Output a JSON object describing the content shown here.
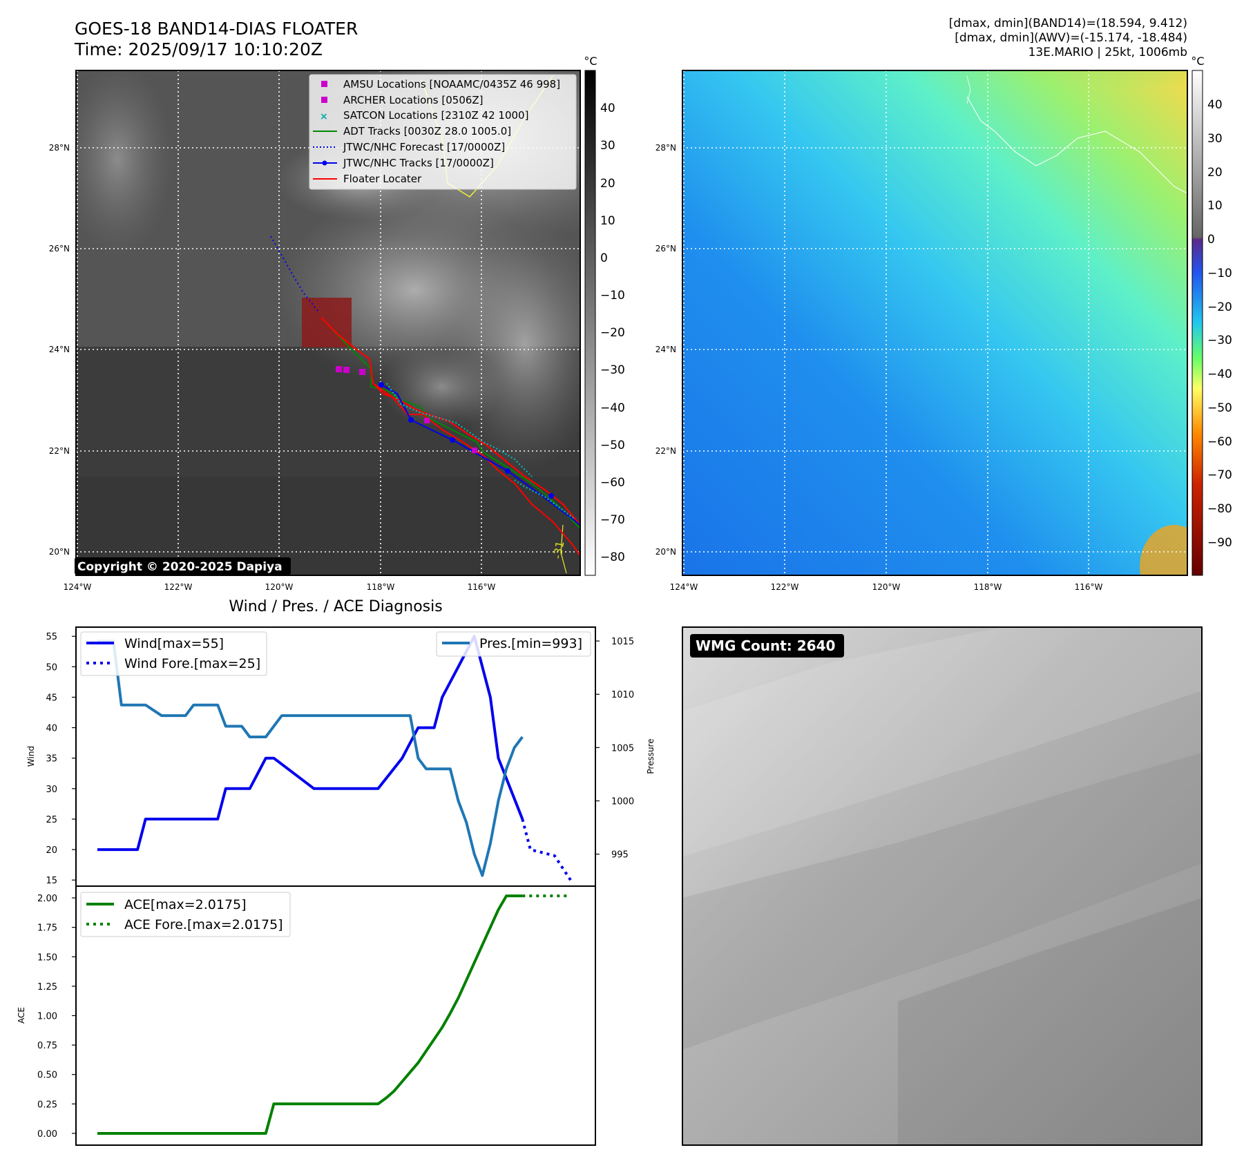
{
  "header": {
    "title_line1": "GOES-18 BAND14-DIAS FLOATER",
    "title_line2": "Time: 2025/09/17 10:10:20Z",
    "info_line1": "[dmax, dmin](BAND14)=(18.594, 9.412)",
    "info_line2": "[dmax, dmin](AWV)=(-15.174, -18.484)",
    "info_line3": "13E.MARIO | 25kt, 1006mb"
  },
  "maps": {
    "lon_ticks": [
      "124°W",
      "122°W",
      "120°W",
      "118°W",
      "116°W"
    ],
    "lat_ticks": [
      "28°N",
      "26°N",
      "24°N",
      "22°N",
      "20°N"
    ],
    "copyright": "Copyright © 2020-2025 Dapiya",
    "colorbar_unit": "°C",
    "ir_colorbar_ticks": [
      "40",
      "30",
      "20",
      "10",
      "0",
      "−10",
      "−20",
      "−30",
      "−40",
      "−50",
      "−60",
      "−70",
      "−80"
    ],
    "wv_colorbar_ticks": [
      "40",
      "30",
      "20",
      "10",
      "0",
      "−10",
      "−20",
      "−30",
      "−40",
      "−50",
      "−60",
      "−70",
      "−80",
      "−90"
    ],
    "contour_label": "-31"
  },
  "legend": {
    "amsu": "AMSU Locations [NOAAMC/0435Z 46 998]",
    "archer": "ARCHER Locations [0506Z]",
    "satcon": "SATCON Locations [2310Z 42 1000]",
    "adt": "ADT Tracks [0030Z 28.0 1005.0]",
    "jtwc_forecast": "JTWC/NHC Forecast [17/0000Z]",
    "jtwc_tracks": "JTWC/NHC Tracks [17/0000Z]",
    "floater": "Floater Locater"
  },
  "colors": {
    "wind": "#0000ee",
    "pressure": "#1f77b4",
    "ace": "#008000",
    "floater": "#ff0000",
    "amsu": "#cc00cc",
    "satcon": "#00bbbb"
  },
  "wmg_label": "WMG Count: 2640",
  "chart_data": [
    {
      "type": "line",
      "title": "Wind / Pres. / ACE Diagnosis",
      "ylabel": "Wind",
      "y2label": "Pressure",
      "ylim": [
        14,
        56.5
      ],
      "y2lim": [
        992.0,
        1016.3
      ],
      "yticks": [
        15,
        20,
        25,
        30,
        35,
        40,
        45,
        50,
        55
      ],
      "y2ticks": [
        995,
        1000,
        1005,
        1010,
        1015
      ],
      "legend": [
        "Wind[max=55]",
        "Wind Fore.[max=25]"
      ],
      "legend2": [
        "Pres.[min=993]"
      ],
      "series": [
        {
          "name": "Wind[max=55]",
          "axis": "left",
          "style": "solid",
          "x": [
            0,
            5,
            6,
            10,
            11,
            15,
            16,
            18,
            19,
            21,
            22,
            27,
            28,
            30,
            31,
            34,
            35,
            38,
            40,
            42,
            43,
            45,
            47,
            49,
            50,
            53
          ],
          "values": [
            20,
            20,
            25,
            25,
            25,
            25,
            30,
            30,
            30,
            35,
            35,
            30,
            30,
            30,
            30,
            30,
            30,
            35,
            40,
            40,
            45,
            50,
            55,
            45,
            35,
            25
          ]
        },
        {
          "name": "Wind Fore.[max=25]",
          "axis": "left",
          "style": "dotted",
          "x": [
            53,
            54,
            57,
            59
          ],
          "values": [
            25,
            20,
            19,
            15
          ]
        },
        {
          "name": "Pres.[min=993]",
          "axis": "right",
          "style": "solid",
          "x": [
            0,
            2,
            3,
            5,
            6,
            8,
            9,
            11,
            12,
            13,
            14,
            15,
            16,
            17,
            18,
            19,
            20,
            21,
            22,
            23,
            24,
            25,
            26,
            27,
            28,
            29,
            30,
            31,
            32,
            33,
            34,
            35,
            36,
            37,
            38,
            39,
            40,
            41,
            42,
            43,
            44,
            45,
            46,
            47,
            48,
            49,
            50,
            51,
            52,
            53
          ],
          "values": [
            1015,
            1015,
            1009,
            1009,
            1009,
            1008,
            1008,
            1008,
            1009,
            1009,
            1009,
            1009,
            1007,
            1007,
            1007,
            1006,
            1006,
            1006,
            1007,
            1008,
            1008,
            1008,
            1008,
            1008,
            1008,
            1008,
            1008,
            1008,
            1008,
            1008,
            1008,
            1008,
            1008,
            1008,
            1008,
            1008,
            1004,
            1003,
            1003,
            1003,
            1003,
            1000,
            998,
            995,
            993,
            996,
            1000,
            1003,
            1005,
            1006
          ]
        }
      ]
    },
    {
      "type": "line",
      "ylabel": "ACE",
      "ylim": [
        -0.1,
        2.1
      ],
      "yticks": [
        "0.00",
        "0.25",
        "0.50",
        "0.75",
        "1.00",
        "1.25",
        "1.50",
        "1.75",
        "2.00"
      ],
      "legend": [
        "ACE[max=2.0175]",
        "ACE Fore.[max=2.0175]"
      ],
      "series": [
        {
          "name": "ACE[max=2.0175]",
          "style": "solid",
          "x": [
            0,
            5,
            10,
            15,
            19,
            20,
            21,
            22,
            25,
            30,
            34,
            35,
            36,
            37,
            38,
            39,
            40,
            41,
            42,
            43,
            44,
            45,
            46,
            47,
            48,
            49,
            50,
            51,
            52,
            53
          ],
          "values": [
            0,
            0,
            0,
            0,
            0,
            0,
            0.0,
            0.25,
            0.25,
            0.25,
            0.25,
            0.25,
            0.3,
            0.36,
            0.44,
            0.52,
            0.6,
            0.7,
            0.8,
            0.9,
            1.02,
            1.15,
            1.3,
            1.45,
            1.6,
            1.75,
            1.9,
            2.0175,
            2.0175,
            2.0175
          ]
        },
        {
          "name": "ACE Fore.[max=2.0175]",
          "style": "dotted",
          "x": [
            53,
            54,
            57,
            59
          ],
          "values": [
            2.0175,
            2.0175,
            2.0175,
            2.0175
          ]
        }
      ]
    }
  ]
}
